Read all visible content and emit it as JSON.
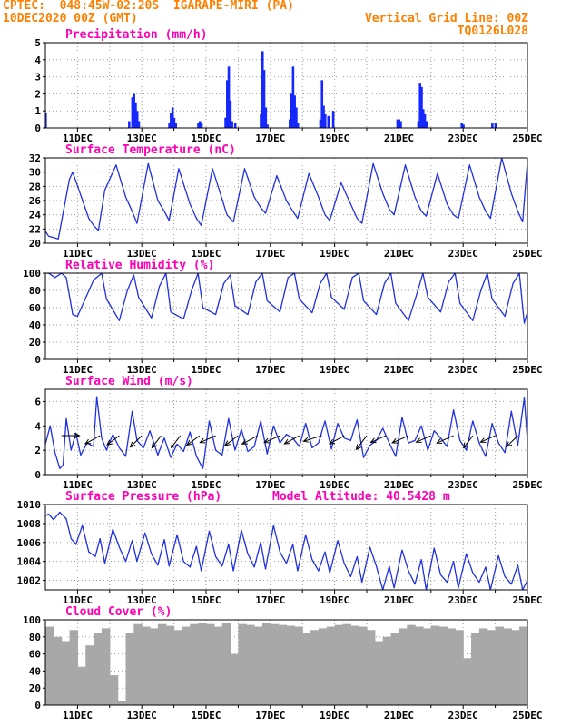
{
  "header": {
    "line1_left": "CPTEC:  048:45W-02:20S  IGARAPE-MIRI (PA)",
    "line2_left": "10DEC2020 00Z (GMT)",
    "line2_right": "Vertical Grid Line: 00Z",
    "line3_right": "TQ0126L028"
  },
  "colors": {
    "header": "#ff8000",
    "title": "#ff00b4",
    "line": "#2030e0",
    "bar": "#1428ff",
    "cloud": "#a8a8a8",
    "grid": "#9a9a9a"
  },
  "chart_data": [
    {
      "type": "bar",
      "title": "Precipitation (mm/h)",
      "xlim": [
        10.0,
        25.0
      ],
      "ylim": [
        0,
        5
      ],
      "yticks": [
        0,
        1,
        2,
        3,
        4,
        5
      ],
      "xticks": [
        11,
        13,
        15,
        17,
        19,
        21,
        23,
        25
      ],
      "xticklabels": [
        "11DEC",
        "13DEC",
        "15DEC",
        "17DEC",
        "19DEC",
        "21DEC",
        "23DEC",
        "25DEC"
      ],
      "x": [
        10.0,
        12.6,
        12.7,
        12.75,
        12.8,
        12.85,
        12.9,
        13.85,
        13.9,
        13.95,
        14.0,
        14.05,
        14.75,
        14.8,
        14.85,
        15.6,
        15.65,
        15.7,
        15.75,
        15.8,
        15.9,
        16.7,
        16.75,
        16.8,
        16.85,
        16.9,
        17.6,
        17.65,
        17.7,
        17.75,
        17.8,
        17.85,
        18.55,
        18.6,
        18.65,
        18.7,
        18.8,
        18.95,
        20.95,
        21.0,
        21.05,
        21.6,
        21.65,
        21.7,
        21.75,
        21.8,
        21.85,
        22.95,
        23.0,
        23.9,
        24.0
      ],
      "values": [
        0.9,
        0.4,
        1.8,
        2.0,
        1.5,
        1.0,
        0.4,
        0.3,
        0.9,
        1.2,
        0.6,
        0.3,
        0.3,
        0.4,
        0.3,
        0.6,
        2.8,
        3.6,
        1.6,
        0.4,
        0.3,
        0.8,
        4.5,
        3.4,
        1.2,
        0.2,
        0.5,
        2.0,
        3.6,
        1.9,
        1.2,
        0.3,
        0.5,
        2.8,
        1.3,
        0.8,
        0.7,
        1.0,
        0.5,
        0.5,
        0.4,
        0.4,
        2.6,
        2.4,
        1.1,
        0.8,
        0.4,
        0.3,
        0.2,
        0.3,
        0.3
      ]
    },
    {
      "type": "line",
      "title": "Surface Temperature (nC)",
      "xlim": [
        10.0,
        25.0
      ],
      "ylim": [
        20,
        32
      ],
      "yticks": [
        20,
        22,
        24,
        26,
        28,
        30,
        32
      ],
      "xticks": [
        11,
        13,
        15,
        17,
        19,
        21,
        23,
        25
      ],
      "xticklabels": [
        "11DEC",
        "13DEC",
        "15DEC",
        "17DEC",
        "19DEC",
        "21DEC",
        "23DEC",
        "25DEC"
      ],
      "x": [
        10.0,
        10.1,
        10.25,
        10.4,
        10.5,
        10.75,
        10.85,
        11.35,
        11.5,
        11.65,
        11.85,
        12.2,
        12.5,
        12.7,
        12.85,
        13.2,
        13.5,
        13.7,
        13.85,
        14.15,
        14.5,
        14.7,
        14.85,
        15.2,
        15.5,
        15.65,
        15.85,
        16.2,
        16.5,
        16.7,
        16.85,
        17.2,
        17.5,
        17.7,
        17.85,
        18.2,
        18.5,
        18.7,
        18.85,
        19.2,
        19.5,
        19.7,
        19.85,
        20.2,
        20.5,
        20.7,
        20.85,
        21.2,
        21.5,
        21.7,
        21.85,
        22.2,
        22.5,
        22.7,
        22.85,
        23.2,
        23.5,
        23.7,
        23.85,
        24.2,
        24.5,
        24.7,
        24.85,
        25.0
      ],
      "y": [
        21.7,
        21.0,
        20.8,
        20.6,
        23.0,
        29.0,
        30.0,
        23.5,
        22.5,
        21.8,
        27.5,
        31.0,
        26.5,
        24.5,
        22.8,
        31.2,
        26.0,
        24.5,
        23.2,
        30.5,
        25.5,
        23.5,
        22.5,
        30.5,
        26.2,
        24.0,
        23.0,
        30.5,
        26.5,
        25.0,
        24.2,
        29.5,
        26.0,
        24.5,
        23.5,
        29.8,
        26.5,
        24.0,
        23.2,
        28.5,
        25.5,
        23.5,
        22.8,
        31.2,
        27.0,
        24.8,
        24.0,
        31.0,
        26.5,
        24.5,
        23.8,
        29.8,
        25.5,
        24.0,
        23.5,
        31.0,
        26.5,
        24.5,
        23.5,
        32.0,
        27.0,
        24.5,
        23.0,
        31.5
      ]
    },
    {
      "type": "line",
      "title": "Relative Humidity (%)",
      "xlim": [
        10.0,
        25.0
      ],
      "ylim": [
        0,
        100
      ],
      "yticks": [
        0,
        20,
        40,
        60,
        80,
        100
      ],
      "xticks": [
        11,
        13,
        15,
        17,
        19,
        21,
        23,
        25
      ],
      "xticklabels": [
        "11DEC",
        "13DEC",
        "15DEC",
        "17DEC",
        "19DEC",
        "21DEC",
        "23DEC",
        "25DEC"
      ],
      "x": [
        10.0,
        10.1,
        10.3,
        10.5,
        10.65,
        10.85,
        11.0,
        11.5,
        11.75,
        11.9,
        12.3,
        12.55,
        12.75,
        12.9,
        13.3,
        13.55,
        13.75,
        13.9,
        14.3,
        14.55,
        14.75,
        14.9,
        15.3,
        15.55,
        15.75,
        15.9,
        16.3,
        16.55,
        16.75,
        16.9,
        17.3,
        17.55,
        17.75,
        17.9,
        18.3,
        18.55,
        18.75,
        18.9,
        19.3,
        19.55,
        19.75,
        19.9,
        20.3,
        20.55,
        20.75,
        20.9,
        21.3,
        21.55,
        21.75,
        21.9,
        22.3,
        22.55,
        22.75,
        22.9,
        23.3,
        23.55,
        23.75,
        23.9,
        24.3,
        24.55,
        24.75,
        24.9,
        25.0
      ],
      "y": [
        100,
        100,
        95,
        100,
        95,
        52,
        50,
        92,
        100,
        70,
        45,
        80,
        98,
        72,
        48,
        85,
        100,
        55,
        47,
        80,
        100,
        60,
        52,
        88,
        98,
        62,
        52,
        90,
        100,
        68,
        55,
        95,
        100,
        70,
        54,
        88,
        100,
        72,
        58,
        95,
        100,
        68,
        52,
        88,
        100,
        65,
        45,
        75,
        100,
        72,
        55,
        90,
        100,
        65,
        45,
        80,
        100,
        70,
        50,
        88,
        100,
        42,
        55
      ]
    },
    {
      "type": "line",
      "title": "Surface Wind (m/s)",
      "xlim": [
        10.0,
        25.0
      ],
      "ylim": [
        0,
        7
      ],
      "yticks": [
        0,
        2,
        4,
        6
      ],
      "xticks": [
        11,
        13,
        15,
        17,
        19,
        21,
        23,
        25
      ],
      "xticklabels": [
        "11DEC",
        "13DEC",
        "15DEC",
        "17DEC",
        "19DEC",
        "21DEC",
        "23DEC",
        "25DEC"
      ],
      "x": [
        10.0,
        10.15,
        10.3,
        10.45,
        10.55,
        10.65,
        10.8,
        10.95,
        11.1,
        11.3,
        11.5,
        11.6,
        11.75,
        11.9,
        12.1,
        12.3,
        12.5,
        12.7,
        12.85,
        13.05,
        13.25,
        13.5,
        13.7,
        13.9,
        14.1,
        14.3,
        14.5,
        14.7,
        14.9,
        15.1,
        15.3,
        15.5,
        15.7,
        15.9,
        16.1,
        16.3,
        16.5,
        16.7,
        16.9,
        17.1,
        17.3,
        17.5,
        17.7,
        17.9,
        18.1,
        18.3,
        18.5,
        18.7,
        18.9,
        19.1,
        19.3,
        19.5,
        19.7,
        19.9,
        20.1,
        20.3,
        20.5,
        20.7,
        20.9,
        21.1,
        21.3,
        21.5,
        21.7,
        21.9,
        22.1,
        22.3,
        22.5,
        22.7,
        22.9,
        23.1,
        23.3,
        23.5,
        23.7,
        23.9,
        24.1,
        24.3,
        24.5,
        24.7,
        24.9,
        25.0
      ],
      "y": [
        2.5,
        4.0,
        1.8,
        0.5,
        0.8,
        4.6,
        2.0,
        3.4,
        1.6,
        2.6,
        2.3,
        6.4,
        3.0,
        2.0,
        3.3,
        2.2,
        1.5,
        5.2,
        2.8,
        2.2,
        3.6,
        1.6,
        3.0,
        1.4,
        2.5,
        1.9,
        3.5,
        1.5,
        0.5,
        4.4,
        2.0,
        1.6,
        4.6,
        2.0,
        3.7,
        1.9,
        2.3,
        4.4,
        1.7,
        4.0,
        2.6,
        3.3,
        3.0,
        2.3,
        4.2,
        2.2,
        2.6,
        4.4,
        2.1,
        4.2,
        3.0,
        2.8,
        4.5,
        1.4,
        2.4,
        2.8,
        3.8,
        2.6,
        1.5,
        4.7,
        2.6,
        2.8,
        4.0,
        2.0,
        3.6,
        3.0,
        2.3,
        5.3,
        2.8,
        2.0,
        4.4,
        2.6,
        1.5,
        4.2,
        2.6,
        1.8,
        5.2,
        2.4,
        6.3,
        2.8
      ],
      "arrows": [
        {
          "x": 10.0,
          "speed": 4.3,
          "dx": -1.0,
          "dy": 0.2
        },
        {
          "x": 10.5,
          "speed": 3.3,
          "dx": 1.0,
          "dy": 0.0
        },
        {
          "x": 11.7,
          "speed": 3.0,
          "dx": -0.9,
          "dy": -0.5
        },
        {
          "x": 12.3,
          "speed": 2.8,
          "dx": -0.8,
          "dy": -0.6
        },
        {
          "x": 13.0,
          "speed": 3.0,
          "dx": -0.7,
          "dy": -0.7
        },
        {
          "x": 13.6,
          "speed": 2.8,
          "dx": -0.6,
          "dy": -0.8
        },
        {
          "x": 14.2,
          "speed": 2.8,
          "dx": -0.6,
          "dy": -0.8
        },
        {
          "x": 14.8,
          "speed": 2.9,
          "dx": -0.8,
          "dy": -0.6
        },
        {
          "x": 15.3,
          "speed": 3.2,
          "dx": -0.9,
          "dy": -0.4
        },
        {
          "x": 16.0,
          "speed": 3.0,
          "dx": -0.8,
          "dy": -0.6
        },
        {
          "x": 16.6,
          "speed": 3.1,
          "dx": -0.9,
          "dy": -0.5
        },
        {
          "x": 17.3,
          "speed": 3.2,
          "dx": -0.9,
          "dy": -0.4
        },
        {
          "x": 17.9,
          "speed": 3.0,
          "dx": -0.9,
          "dy": -0.5
        },
        {
          "x": 18.6,
          "speed": 3.5,
          "dx": -0.95,
          "dy": -0.3
        },
        {
          "x": 19.3,
          "speed": 3.0,
          "dx": -0.9,
          "dy": -0.5
        },
        {
          "x": 20.0,
          "speed": 3.2,
          "dx": -0.6,
          "dy": -0.8
        },
        {
          "x": 20.6,
          "speed": 3.1,
          "dx": -0.9,
          "dy": -0.4
        },
        {
          "x": 21.3,
          "speed": 3.3,
          "dx": -0.9,
          "dy": -0.4
        },
        {
          "x": 22.0,
          "speed": 3.0,
          "dx": -0.9,
          "dy": -0.4
        },
        {
          "x": 22.7,
          "speed": 3.4,
          "dx": -0.9,
          "dy": -0.4
        },
        {
          "x": 23.3,
          "speed": 2.8,
          "dx": -0.6,
          "dy": -0.8
        },
        {
          "x": 24.0,
          "speed": 3.0,
          "dx": -0.9,
          "dy": -0.4
        },
        {
          "x": 24.7,
          "speed": 2.9,
          "dx": -0.7,
          "dy": -0.7
        }
      ]
    },
    {
      "type": "line",
      "title": "Surface Pressure (hPa)",
      "annotation": "Model Altitude: 40.5428 m",
      "xlim": [
        10.0,
        25.0
      ],
      "ylim": [
        1001,
        1010
      ],
      "yticks": [
        1002,
        1004,
        1006,
        1008,
        1010
      ],
      "xticks": [
        11,
        13,
        15,
        17,
        19,
        21,
        23,
        25
      ],
      "xticklabels": [
        "11DEC",
        "13DEC",
        "15DEC",
        "17DEC",
        "19DEC",
        "21DEC",
        "23DEC",
        "25DEC"
      ],
      "x": [
        10.0,
        10.1,
        10.25,
        10.45,
        10.65,
        10.8,
        10.95,
        11.15,
        11.35,
        11.55,
        11.7,
        11.85,
        12.1,
        12.3,
        12.5,
        12.7,
        12.85,
        13.1,
        13.3,
        13.5,
        13.7,
        13.85,
        14.1,
        14.3,
        14.5,
        14.7,
        14.85,
        15.1,
        15.3,
        15.5,
        15.7,
        15.85,
        16.1,
        16.3,
        16.5,
        16.7,
        16.85,
        17.1,
        17.3,
        17.5,
        17.7,
        17.85,
        18.1,
        18.3,
        18.5,
        18.7,
        18.85,
        19.1,
        19.3,
        19.5,
        19.7,
        19.85,
        20.1,
        20.3,
        20.5,
        20.7,
        20.85,
        21.1,
        21.3,
        21.5,
        21.7,
        21.85,
        22.1,
        22.3,
        22.5,
        22.7,
        22.85,
        23.1,
        23.3,
        23.5,
        23.7,
        23.85,
        24.1,
        24.3,
        24.5,
        24.7,
        24.85,
        25.0
      ],
      "y": [
        1008.8,
        1009.0,
        1008.4,
        1009.2,
        1008.5,
        1006.4,
        1005.8,
        1007.8,
        1005.0,
        1004.5,
        1006.4,
        1003.8,
        1007.4,
        1005.5,
        1004.0,
        1006.2,
        1004.0,
        1007.0,
        1004.8,
        1003.6,
        1006.3,
        1003.5,
        1006.8,
        1004.0,
        1003.4,
        1005.6,
        1003.0,
        1007.2,
        1004.5,
        1003.5,
        1005.8,
        1003.0,
        1007.3,
        1004.8,
        1003.4,
        1006.0,
        1003.2,
        1007.8,
        1005.0,
        1003.8,
        1005.8,
        1003.0,
        1006.8,
        1004.2,
        1003.0,
        1005.0,
        1002.8,
        1006.2,
        1003.8,
        1002.4,
        1004.5,
        1001.8,
        1005.5,
        1003.5,
        1001.0,
        1003.5,
        1001.2,
        1005.2,
        1003.0,
        1001.6,
        1004.2,
        1001.0,
        1005.4,
        1002.6,
        1001.8,
        1004.0,
        1001.2,
        1004.8,
        1002.8,
        1001.8,
        1003.4,
        1001.0,
        1004.6,
        1002.4,
        1001.6,
        1003.6,
        1001.0,
        1002.0
      ]
    },
    {
      "type": "bar",
      "title": "Cloud Cover (%)",
      "xlim": [
        10.0,
        25.0
      ],
      "ylim": [
        0,
        100
      ],
      "yticks": [
        0,
        20,
        40,
        60,
        80,
        100
      ],
      "xticks": [
        11,
        13,
        15,
        17,
        19,
        21,
        23,
        25
      ],
      "xticklabels": [
        "11DEC",
        "13DEC",
        "15DEC",
        "17DEC",
        "19DEC",
        "21DEC",
        "23DEC",
        "25DEC"
      ],
      "x": [
        10.0,
        10.25,
        10.5,
        10.75,
        11.0,
        11.25,
        11.5,
        11.75,
        12.0,
        12.25,
        12.5,
        12.75,
        13.0,
        13.25,
        13.5,
        13.75,
        14.0,
        14.25,
        14.5,
        14.75,
        15.0,
        15.25,
        15.5,
        15.75,
        16.0,
        16.25,
        16.5,
        16.75,
        17.0,
        17.25,
        17.5,
        17.75,
        18.0,
        18.25,
        18.5,
        18.75,
        19.0,
        19.25,
        19.5,
        19.75,
        20.0,
        20.25,
        20.5,
        20.75,
        21.0,
        21.25,
        21.5,
        21.75,
        22.0,
        22.25,
        22.5,
        22.75,
        23.0,
        23.25,
        23.5,
        23.75,
        24.0,
        24.25,
        24.5,
        24.75
      ],
      "values": [
        92,
        80,
        75,
        88,
        45,
        70,
        85,
        90,
        35,
        5,
        85,
        95,
        92,
        90,
        95,
        93,
        88,
        92,
        95,
        96,
        95,
        92,
        96,
        60,
        95,
        94,
        92,
        96,
        95,
        94,
        93,
        92,
        85,
        88,
        90,
        92,
        94,
        95,
        93,
        92,
        88,
        75,
        80,
        85,
        90,
        94,
        92,
        90,
        93,
        92,
        90,
        88,
        55,
        85,
        90,
        88,
        92,
        90,
        88,
        92
      ]
    }
  ]
}
